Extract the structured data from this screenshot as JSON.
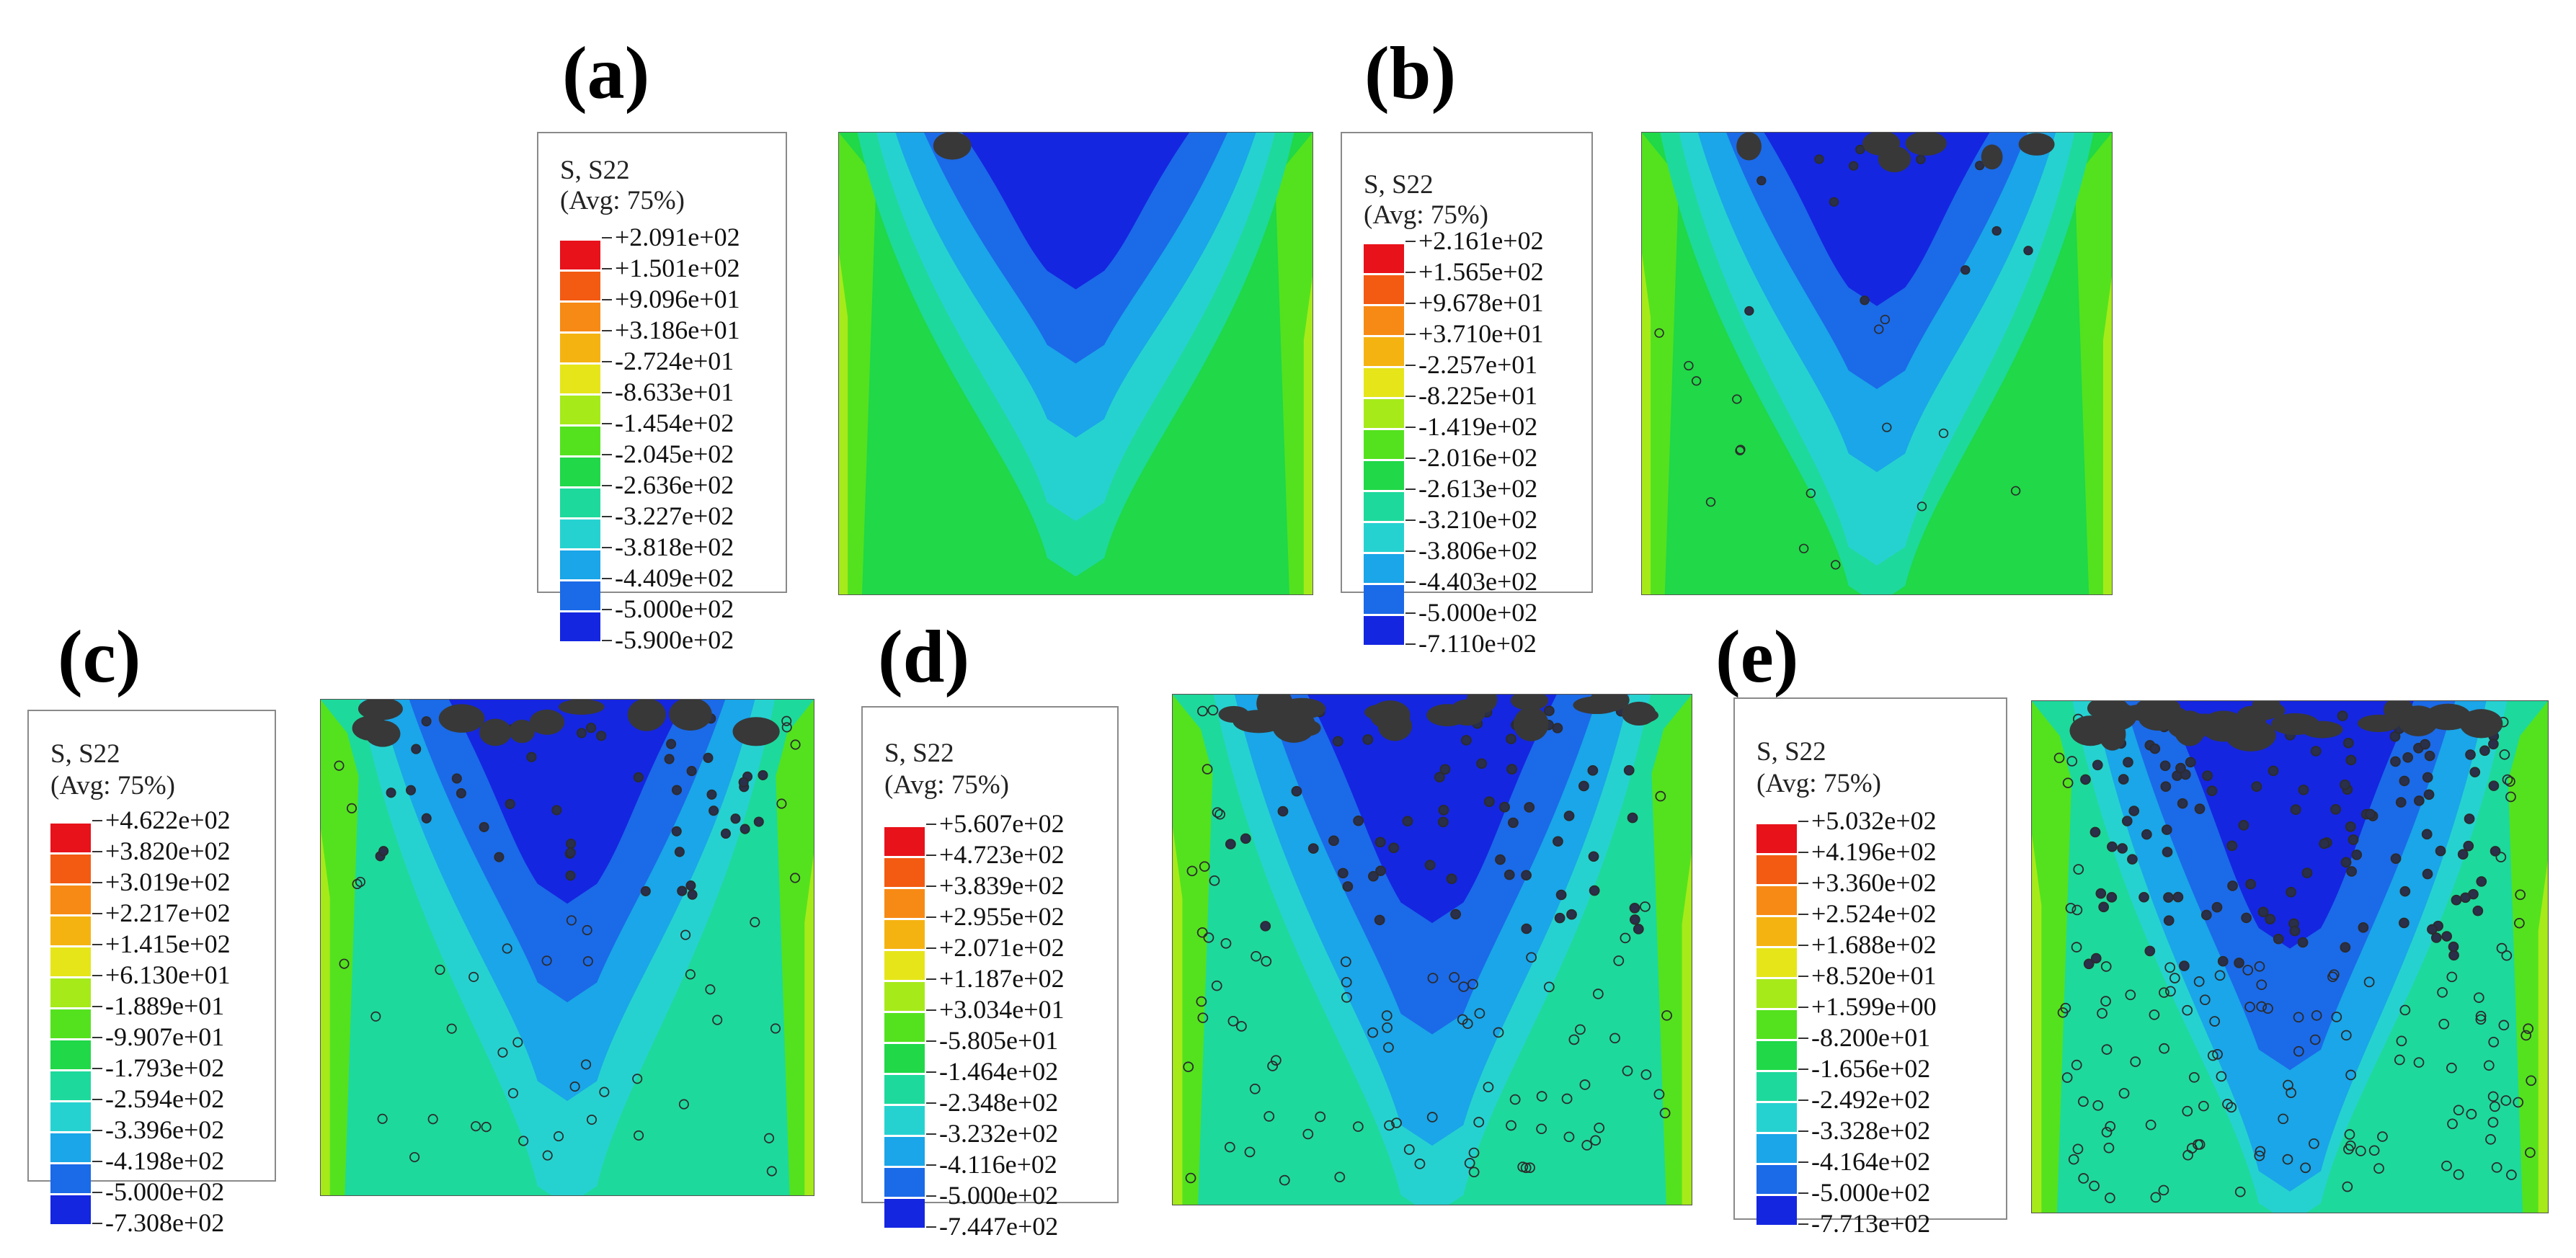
{
  "palette": [
    "#e8121a",
    "#f35a12",
    "#f78a14",
    "#f5b312",
    "#e6e51a",
    "#a6ea1a",
    "#54e21e",
    "#20d848",
    "#1ed99c",
    "#26d2d0",
    "#1aa6e8",
    "#1b6ae8",
    "#1426e0",
    "#383838"
  ],
  "panels": [
    {
      "label": "(a)",
      "legend_title": "S, S22",
      "legend_avg": "(Avg: 75%)",
      "values": [
        "+2.091e+02",
        "+1.501e+02",
        "+9.096e+01",
        "+3.186e+01",
        "-2.724e+01",
        "-8.633e+01",
        "-1.454e+02",
        "-2.045e+02",
        "-2.636e+02",
        "-3.227e+02",
        "-3.818e+02",
        "-4.409e+02",
        "-5.000e+02",
        "-5.900e+02"
      ],
      "pore_density": 0
    },
    {
      "label": "(b)",
      "legend_title": "S, S22",
      "legend_avg": "(Avg: 75%)",
      "values": [
        "+2.161e+02",
        "+1.565e+02",
        "+9.678e+01",
        "+3.710e+01",
        "-2.257e+01",
        "-8.225e+01",
        "-1.419e+02",
        "-2.016e+02",
        "-2.613e+02",
        "-3.210e+02",
        "-3.806e+02",
        "-4.403e+02",
        "-5.000e+02",
        "-7.110e+02"
      ],
      "pore_density": 1
    },
    {
      "label": "(c)",
      "legend_title": "S, S22",
      "legend_avg": "(Avg: 75%)",
      "values": [
        "+4.622e+02",
        "+3.820e+02",
        "+3.019e+02",
        "+2.217e+02",
        "+1.415e+02",
        "+6.130e+01",
        "-1.889e+01",
        "-9.907e+01",
        "-1.793e+02",
        "-2.594e+02",
        "-3.396e+02",
        "-4.198e+02",
        "-5.000e+02",
        "-7.308e+02"
      ],
      "pore_density": 2
    },
    {
      "label": "(d)",
      "legend_title": "S, S22",
      "legend_avg": "(Avg: 75%)",
      "values": [
        "+5.607e+02",
        "+4.723e+02",
        "+3.839e+02",
        "+2.955e+02",
        "+2.071e+02",
        "+1.187e+02",
        "+3.034e+01",
        "-5.805e+01",
        "-1.464e+02",
        "-2.348e+02",
        "-3.232e+02",
        "-4.116e+02",
        "-5.000e+02",
        "-7.447e+02"
      ],
      "pore_density": 3
    },
    {
      "label": "(e)",
      "legend_title": "S, S22",
      "legend_avg": "(Avg: 75%)",
      "values": [
        "+5.032e+02",
        "+4.196e+02",
        "+3.360e+02",
        "+2.524e+02",
        "+1.688e+02",
        "+8.520e+01",
        "+1.599e+00",
        "-8.200e+01",
        "-1.656e+02",
        "-2.492e+02",
        "-3.328e+02",
        "-4.164e+02",
        "-5.000e+02",
        "-7.713e+02"
      ],
      "pore_density": 4
    }
  ]
}
